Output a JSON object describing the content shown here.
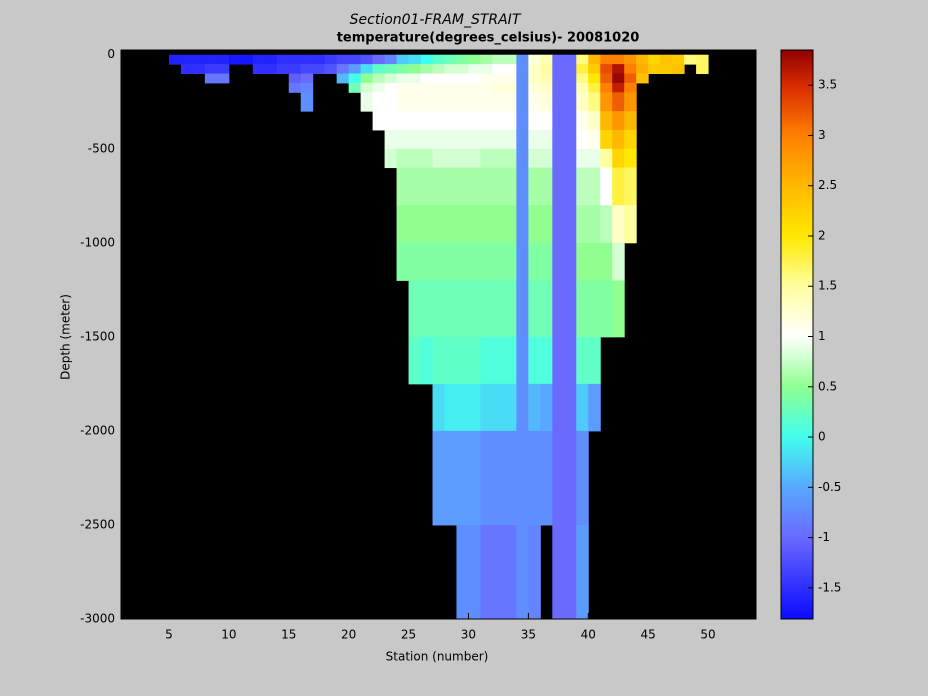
{
  "chart_data": {
    "type": "heatmap",
    "title": "Section01-FRAM_STRAIT",
    "subtitle": "temperature(degrees_celsius)- 20081020",
    "xlabel": "Station (number)",
    "ylabel": "Depth (meter)",
    "xlim": [
      1,
      54
    ],
    "ylim": [
      -3000,
      25
    ],
    "xticks": [
      5,
      10,
      15,
      20,
      25,
      30,
      35,
      40,
      45,
      50
    ],
    "yticks": [
      -3000,
      -2500,
      -2000,
      -1500,
      -1000,
      -500,
      0
    ],
    "background": "#000000",
    "x": [
      5,
      6,
      7,
      8,
      9,
      10,
      11,
      12,
      13,
      14,
      15,
      16,
      17,
      18,
      19,
      20,
      21,
      22,
      23,
      24,
      25,
      26,
      27,
      28,
      29,
      30,
      31,
      32,
      33,
      34,
      35,
      36,
      37,
      38,
      39,
      40,
      41,
      42,
      43,
      44,
      45,
      46,
      47,
      48,
      49
    ],
    "y_edges": [
      0,
      -50,
      -100,
      -150,
      -200,
      -300,
      -400,
      -500,
      -600,
      -800,
      -1000,
      -1200,
      -1500,
      -1750,
      -2000,
      -2500,
      -3000
    ],
    "values": [
      [
        -1.6
      ],
      [
        -1.6,
        -1.5
      ],
      [
        -1.6,
        -1.5
      ],
      [
        -1.6,
        -1.4,
        -0.9
      ],
      [
        -1.6,
        -1.4,
        -0.9
      ],
      [
        -1.7
      ],
      [
        -1.7
      ],
      [
        -1.6,
        -1.5
      ],
      [
        -1.6,
        -1.5
      ],
      [
        -1.5,
        -1.4
      ],
      [
        -1.5,
        -1.4,
        -1.1,
        -0.9
      ],
      [
        -1.5,
        -1.3,
        -1.0,
        -0.8,
        -0.7
      ],
      [
        -1.5,
        -1.3
      ],
      [
        -1.4,
        -1.2
      ],
      [
        -1.3,
        -0.9,
        -0.4
      ],
      [
        -1.3,
        -0.6,
        0.0,
        0.3
      ],
      [
        -1.2,
        -0.2,
        0.5,
        0.8,
        0.9
      ],
      [
        -1.0,
        0.2,
        0.7,
        0.9,
        1.0,
        1.0
      ],
      [
        -0.8,
        0.3,
        0.8,
        1.0,
        1.0,
        1.0,
        0.9,
        0.8
      ],
      [
        -0.3,
        0.4,
        0.9,
        1.1,
        1.1,
        1.0,
        0.9,
        0.7,
        0.6,
        0.5,
        0.4
      ],
      [
        -0.2,
        0.5,
        0.9,
        1.1,
        1.1,
        1.0,
        0.9,
        0.7,
        0.6,
        0.5,
        0.4,
        0.3,
        0.2
      ],
      [
        0.0,
        0.6,
        1.0,
        1.1,
        1.1,
        1.0,
        0.9,
        0.7,
        0.6,
        0.5,
        0.4,
        0.3,
        0.1
      ],
      [
        0.2,
        0.7,
        1.0,
        1.1,
        1.1,
        1.0,
        0.9,
        0.8,
        0.6,
        0.5,
        0.4,
        0.3,
        0.2,
        -0.2,
        -0.6
      ],
      [
        0.3,
        0.8,
        1.0,
        1.1,
        1.1,
        1.0,
        0.9,
        0.8,
        0.6,
        0.5,
        0.4,
        0.3,
        0.2,
        -0.1,
        -0.6
      ],
      [
        0.4,
        0.8,
        1.0,
        1.1,
        1.1,
        1.0,
        0.9,
        0.8,
        0.6,
        0.5,
        0.4,
        0.3,
        0.2,
        -0.1,
        -0.6,
        -0.7
      ],
      [
        0.5,
        0.9,
        1.0,
        1.1,
        1.1,
        1.0,
        0.9,
        0.8,
        0.6,
        0.5,
        0.4,
        0.3,
        0.2,
        -0.1,
        -0.6,
        -0.7
      ],
      [
        0.6,
        0.9,
        1.1,
        1.1,
        1.1,
        1.0,
        0.9,
        0.7,
        0.6,
        0.5,
        0.4,
        0.3,
        0.1,
        -0.2,
        -0.7,
        -0.9
      ],
      [
        0.7,
        1.0,
        1.1,
        1.2,
        1.1,
        1.0,
        0.9,
        0.7,
        0.6,
        0.5,
        0.4,
        0.3,
        0.1,
        -0.2,
        -0.7,
        -0.9
      ],
      [
        0.7,
        1.0,
        1.1,
        1.2,
        1.1,
        1.0,
        0.9,
        0.7,
        0.6,
        0.5,
        0.4,
        0.3,
        0.1,
        -0.2,
        -0.7,
        -0.9
      ],
      [
        -0.7,
        -0.7,
        -0.7,
        -0.7,
        -0.7,
        -0.7,
        -0.7,
        -0.7,
        -0.7,
        -0.7,
        -0.7,
        -0.7,
        -0.7,
        -0.7,
        -0.7,
        -0.7
      ],
      [
        1.2,
        1.3,
        1.3,
        1.2,
        1.1,
        1.0,
        0.9,
        0.8,
        0.6,
        0.5,
        0.4,
        0.3,
        0.1,
        -0.4,
        -0.7,
        -0.8
      ],
      [
        1.4,
        1.5,
        1.4,
        1.3,
        1.2,
        1.0,
        0.9,
        0.8,
        0.6,
        0.5,
        0.4,
        0.3,
        0.1,
        -0.5,
        -0.7,
        null
      ],
      [
        -1.0,
        -1.0,
        -1.0,
        -1.0,
        -1.0,
        -1.0,
        -1.0,
        -1.0,
        -1.0,
        -1.0,
        -1.0,
        -1.0,
        -1.0,
        -1.0,
        -1.0,
        -1.0
      ],
      [
        -1.0,
        -1.0,
        -1.0,
        -1.0,
        -1.0,
        -1.0,
        -1.0,
        -1.0,
        -1.0,
        -1.0,
        -1.0,
        -1.0,
        -1.0,
        -1.0,
        -1.0,
        -1.0
      ],
      [
        1.6,
        1.8,
        1.6,
        1.4,
        1.3,
        1.1,
        1.0,
        0.9,
        0.7,
        0.6,
        0.5,
        0.4,
        0.2,
        -0.3,
        -0.7,
        -0.6
      ],
      [
        2.5,
        2.3,
        2.0,
        1.8,
        1.6,
        1.3,
        1.1,
        0.9,
        0.7,
        0.6,
        0.5,
        0.4,
        0.2,
        -0.6
      ],
      [
        3.0,
        3.3,
        3.2,
        3.0,
        2.8,
        2.5,
        2.2,
        1.5,
        1.0,
        0.7,
        0.5,
        0.4
      ],
      [
        3.0,
        3.7,
        3.8,
        3.6,
        3.2,
        2.8,
        2.5,
        2.2,
        1.8,
        1.3,
        0.8,
        0.5
      ],
      [
        2.8,
        3.0,
        3.2,
        3.0,
        2.8,
        2.5,
        2.2,
        2.0,
        1.7,
        1.5
      ],
      [
        2.5,
        2.6,
        2.4
      ],
      [
        2.2,
        2.3
      ],
      [
        2.4,
        2.3
      ],
      [
        2.3,
        2.4
      ],
      [
        1.6
      ],
      [
        1.7,
        1.7
      ]
    ],
    "clim": [
      -1.81,
      3.85
    ],
    "cticks": [
      -1.5,
      -1,
      -0.5,
      0,
      0.5,
      1,
      1.5,
      2,
      2.5,
      3,
      3.5
    ],
    "colormap": [
      {
        "value": -1.81,
        "color": "#0a0aff"
      },
      {
        "value": -1.0,
        "color": "#6a6aff"
      },
      {
        "value": -0.5,
        "color": "#58a8ff"
      },
      {
        "value": 0.0,
        "color": "#40ffee"
      },
      {
        "value": 0.5,
        "color": "#90ff90"
      },
      {
        "value": 1.0,
        "color": "#ffffff"
      },
      {
        "value": 1.5,
        "color": "#ffffa0"
      },
      {
        "value": 2.0,
        "color": "#ffe800"
      },
      {
        "value": 2.5,
        "color": "#ffb800"
      },
      {
        "value": 3.0,
        "color": "#ff8000"
      },
      {
        "value": 3.5,
        "color": "#d82a00"
      },
      {
        "value": 3.85,
        "color": "#900000"
      }
    ]
  }
}
